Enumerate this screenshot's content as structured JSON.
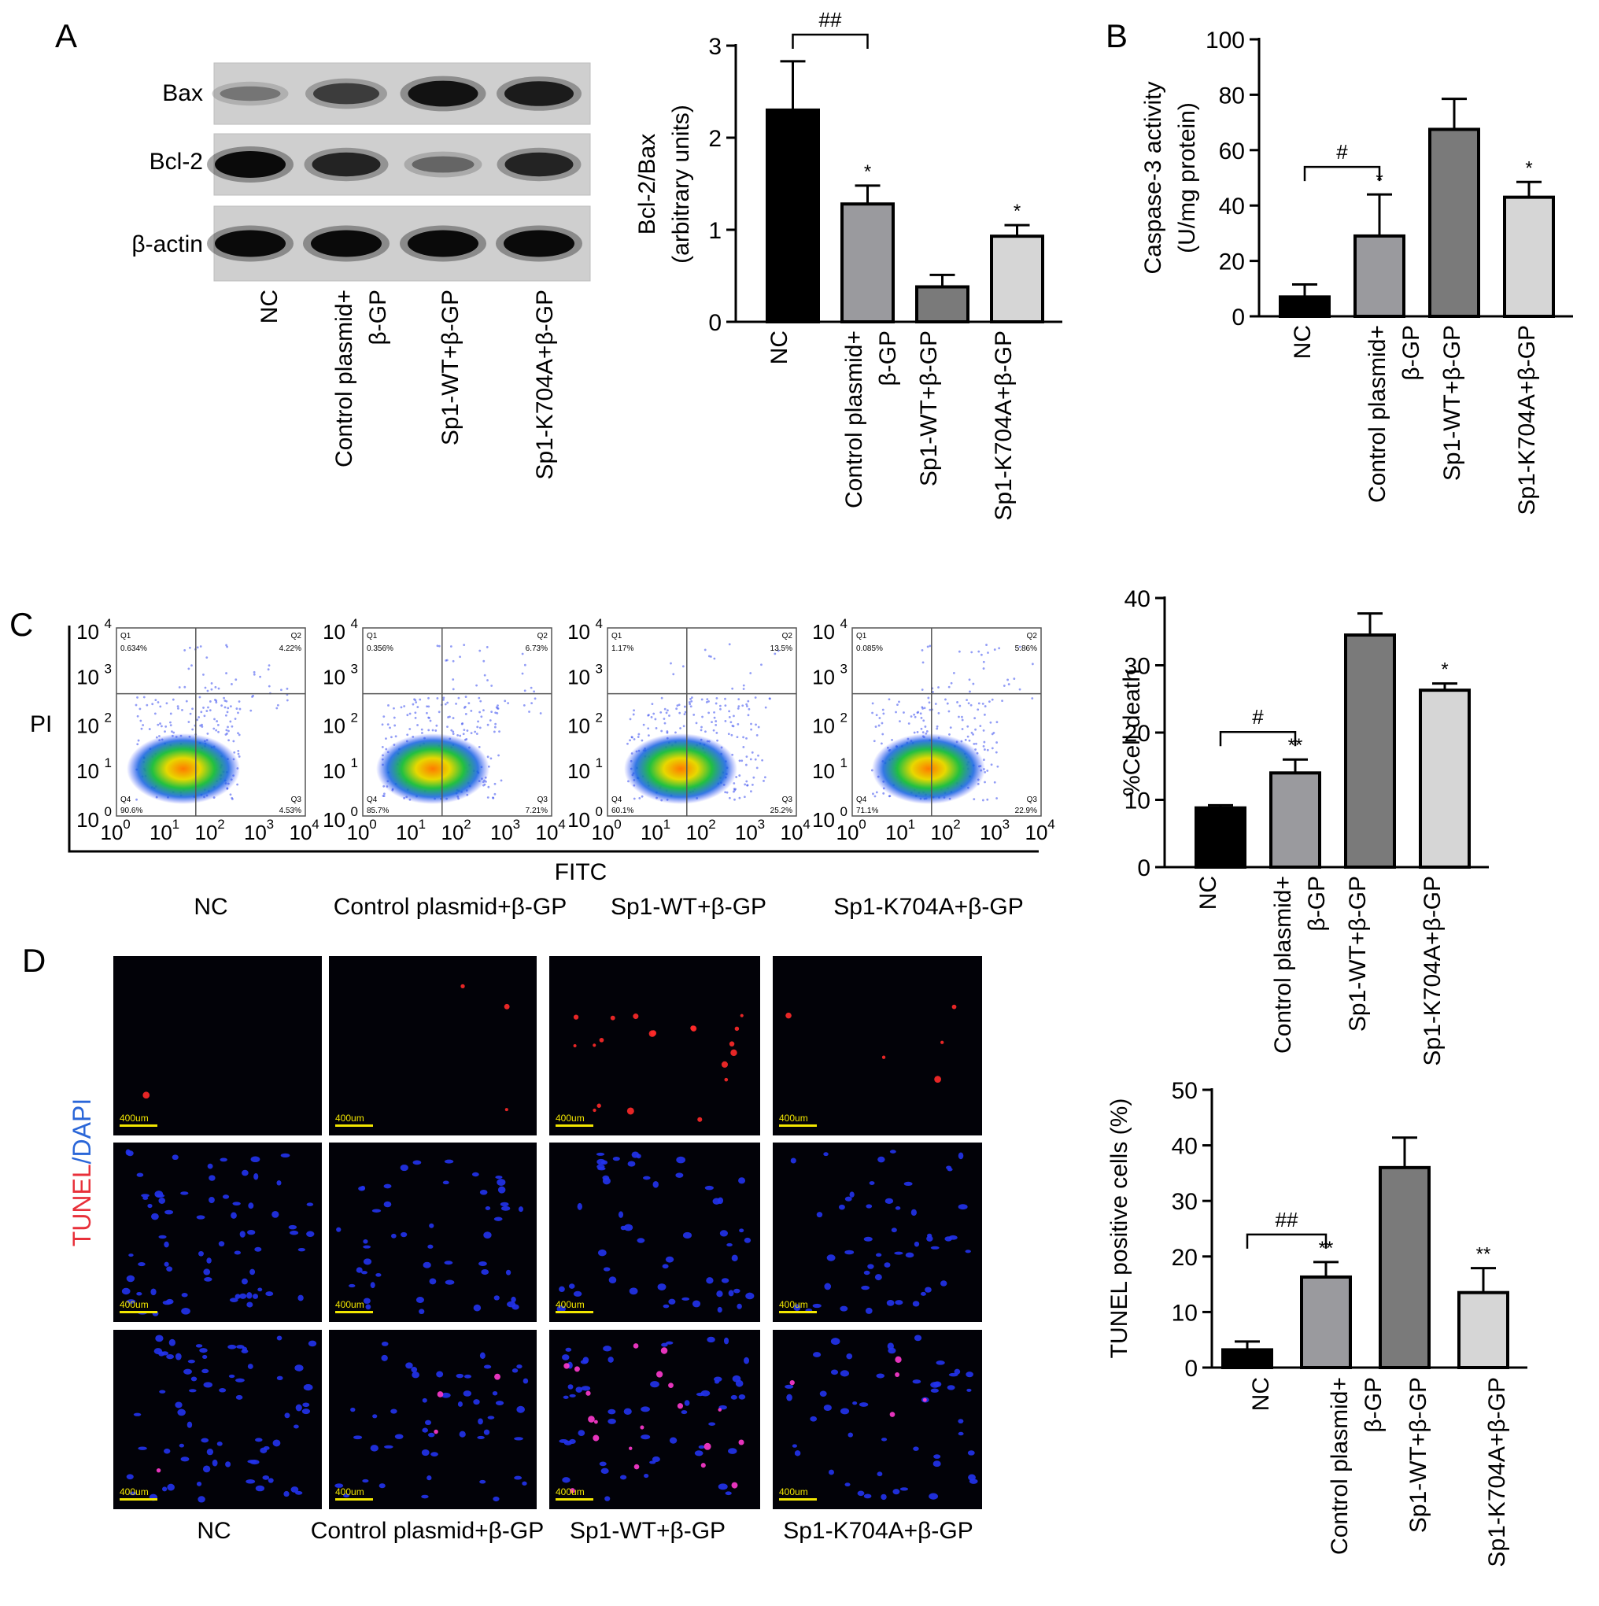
{
  "panels": {
    "A": "A",
    "B": "B",
    "C": "C",
    "D": "D"
  },
  "groups_short": [
    "NC",
    "Control plasmid+",
    "Sp1-WT+β-GP",
    "Sp1-K704A+β-GP"
  ],
  "groups_line2": [
    "",
    "β-GP",
    "",
    ""
  ],
  "groups_full": [
    "NC",
    "Control plasmid+β-GP",
    "Sp1-WT+β-GP",
    "Sp1-K704A+β-GP"
  ],
  "western_blot": {
    "proteins": [
      "Bax",
      "Bcl-2",
      "β-actin"
    ],
    "band_intensity": [
      [
        0.35,
        0.7,
        0.95,
        0.9
      ],
      [
        1.0,
        0.85,
        0.45,
        0.85
      ],
      [
        1.0,
        1.0,
        1.0,
        1.0
      ]
    ]
  },
  "flow": {
    "y_axis_label": "PI",
    "x_axis_label": "FITC",
    "tick_base": "10",
    "tick_exponents": [
      "0",
      "1",
      "2",
      "3",
      "4"
    ],
    "quadrant_names": [
      "Q1",
      "Q2",
      "Q3",
      "Q4"
    ],
    "quadrants": [
      {
        "Q1": "0.634%",
        "Q2": "4.22%",
        "Q3": "4.53%",
        "Q4": "90.6%"
      },
      {
        "Q1": "0.356%",
        "Q2": "6.73%",
        "Q3": "7.21%",
        "Q4": "85.7%"
      },
      {
        "Q1": "1.17%",
        "Q2": "13.5%",
        "Q3": "25.2%",
        "Q4": "60.1%"
      },
      {
        "Q1": "0.085%",
        "Q2": "5.86%",
        "Q3": "22.9%",
        "Q4": "71.1%"
      }
    ]
  },
  "tunel": {
    "stain_label_red": "TUNEL",
    "stain_label_sep": "/",
    "stain_label_blue": "DAPI",
    "scale_bar": "400um",
    "red_cell_density": [
      0.03,
      0.08,
      0.5,
      0.12
    ],
    "blue_cell_density": [
      1.0,
      0.7,
      0.75,
      0.7
    ]
  },
  "chart_data": [
    {
      "type": "bar",
      "panel": "A",
      "categories": [
        "NC",
        "Control plasmid+β-GP",
        "Sp1-WT+β-GP",
        "Sp1-K704A+β-GP"
      ],
      "values": [
        2.3,
        1.28,
        0.38,
        0.93
      ],
      "errors": [
        0.53,
        0.2,
        0.13,
        0.12
      ],
      "ylabel": "Bcl-2/Bax",
      "ylabel2": "(arbitrary units)",
      "ylim": [
        0,
        3
      ],
      "yticks": [
        0,
        1,
        2,
        3
      ],
      "bar_colors": [
        "#000000",
        "#9a9a9e",
        "#7a7a7a",
        "#d6d6d6"
      ],
      "significance": [
        "",
        "*",
        "",
        "*"
      ],
      "bracket": "##"
    },
    {
      "type": "bar",
      "panel": "B",
      "categories": [
        "NC",
        "Control plasmid+β-GP",
        "Sp1-WT+β-GP",
        "Sp1-K704A+β-GP"
      ],
      "values": [
        7,
        29,
        67.5,
        43
      ],
      "errors": [
        4.5,
        15,
        11,
        5.5
      ],
      "ylabel": "Caspase-3 activity",
      "ylabel2": "(U/mg protein)",
      "ylim": [
        0,
        100
      ],
      "yticks": [
        0,
        20,
        40,
        60,
        80,
        100
      ],
      "bar_colors": [
        "#000000",
        "#9a9a9e",
        "#7a7a7a",
        "#d6d6d6"
      ],
      "significance": [
        "",
        "*",
        "",
        "*"
      ],
      "bracket": "#"
    },
    {
      "type": "bar",
      "panel": "C",
      "categories": [
        "NC",
        "Control plasmid+β-GP",
        "Sp1-WT+β-GP",
        "Sp1-K704A+β-GP"
      ],
      "values": [
        8.8,
        14,
        34.5,
        26.3
      ],
      "errors": [
        0.4,
        2,
        3.2,
        1
      ],
      "ylabel": "%Cell death",
      "ylabel2": "",
      "ylim": [
        0,
        40
      ],
      "yticks": [
        0,
        10,
        20,
        30,
        40
      ],
      "bar_colors": [
        "#000000",
        "#9a9a9e",
        "#7a7a7a",
        "#d6d6d6"
      ],
      "significance": [
        "",
        "**",
        "",
        "*"
      ],
      "bracket": "#"
    },
    {
      "type": "bar",
      "panel": "D",
      "categories": [
        "NC",
        "Control plasmid+β-GP",
        "Sp1-WT+β-GP",
        "Sp1-K704A+β-GP"
      ],
      "values": [
        3.2,
        16.3,
        36,
        13.5
      ],
      "errors": [
        1.5,
        2.7,
        5.4,
        4.4
      ],
      "ylabel": "TUNEL positive cells (%)",
      "ylabel2": "",
      "ylim": [
        0,
        50
      ],
      "yticks": [
        0,
        10,
        20,
        30,
        40,
        50
      ],
      "bar_colors": [
        "#000000",
        "#9a9a9e",
        "#7a7a7a",
        "#d6d6d6"
      ],
      "significance": [
        "",
        "**",
        "",
        "**"
      ],
      "bracket": "##"
    }
  ]
}
